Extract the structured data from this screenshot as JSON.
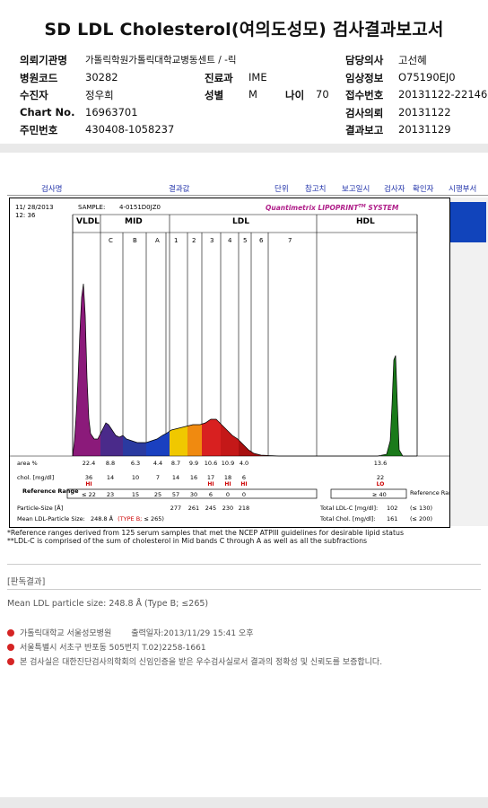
{
  "report": {
    "title": "SD LDL Cholesterol(여의도성모) 검사결과보고서"
  },
  "patient": {
    "institution_label": "의뢰기관명",
    "institution": "가톨릭학원가톨릭대학교병동센트 / -릭",
    "hospital_code_label": "병원코드",
    "hospital_code": "30282",
    "name_label": "수진자",
    "name": "정우희",
    "chart_no_label": "Chart No.",
    "chart_no": "16963701",
    "id_label": "주민번호",
    "id": "430408-1058237",
    "dept_label": "진료과",
    "dept": "IME",
    "sex_label": "성별",
    "sex": "M",
    "age_label": "나이",
    "age": "70",
    "doctor_label": "담당의사",
    "doctor": "고선혜",
    "clinical_label": "임상정보",
    "clinical": "O75190EJ0",
    "receipt_label": "접수번호",
    "receipt": "20131122-22146",
    "request_label": "검사의뢰",
    "request": "20131122",
    "report_label": "결과보고",
    "report_date": "20131129"
  },
  "table_header": {
    "col1": "검사명",
    "col2": "결과값",
    "col3": "단위",
    "col4": "참고치",
    "col5": "보고일시",
    "col6": "검사자",
    "col7": "확인자",
    "col8": "시행부서"
  },
  "chart_data": {
    "type": "area",
    "date": "11/ 28/2013",
    "time": "12: 36",
    "sample_label": "SAMPLE:",
    "sample": "4-0151D0JZ0",
    "brand": "Quantimetrix LIPOPRINT",
    "brand_tm": "TM",
    "brand_system": " SYSTEM",
    "top_groups": [
      "VLDL",
      "MID",
      "LDL",
      "HDL"
    ],
    "bands": [
      "C",
      "B",
      "A",
      "1",
      "2",
      "3",
      "4",
      "5",
      "6",
      "7"
    ],
    "rows": {
      "area_label": "area %",
      "area": [
        "22.4",
        "8.8",
        "6.3",
        "4.4",
        "8.7",
        "9.9",
        "10.6",
        "10.9",
        "4.0",
        "",
        "13.6"
      ],
      "chol_label": "chol. [mg/dl]",
      "chol": [
        "36",
        "14",
        "10",
        "7",
        "14",
        "16",
        "17",
        "18",
        "6",
        "",
        "22"
      ],
      "flags": [
        "HI",
        "",
        "",
        "",
        "",
        "",
        "HI",
        "HI",
        "HI",
        "",
        "LO"
      ],
      "ref_label": "Reference Range",
      "ref": [
        "≤ 22",
        "23",
        "15",
        "25",
        "57",
        "30",
        "6",
        "0",
        "0"
      ],
      "ref_hdl": "≥ 40",
      "ref_right": "Reference Range"
    },
    "particle_size_label": "Particle-Size [Å]",
    "particle_sizes": [
      "277",
      "261",
      "245",
      "230",
      "218"
    ],
    "mean_ldl_label": "Mean LDL-Particle Size:",
    "mean_ldl": "248.8 Å",
    "mean_ldl_type": "(TYPE B;",
    "mean_ldl_ref": "≤ 265)",
    "total_ldl_label": "Total LDL-C [mg/dl]:",
    "total_ldl": "102",
    "total_ldl_ref": "(≤ 130)",
    "total_chol_label": "Total Chol. [mg/dl]:",
    "total_chol": "161",
    "total_chol_ref": "(≤ 200)"
  },
  "notes": {
    "n1": "*Reference ranges derived from 125 serum samples that met the NCEP ATPIII guidelines for desirable lipid status",
    "n2": "**LDL-C is comprised of the sum of cholesterol in Mid bands C through A as well as all the subfractions"
  },
  "interpretation": {
    "title": "[판독결과]",
    "text": "Mean LDL particle size: 248.8 Å (Type B; ≤265)"
  },
  "footer": {
    "org": "가톨릭대학교 서울성모병원",
    "printed": "출력일자:2013/11/29 15:41 오후",
    "address": "서울특별시 서초구 반포동 505번지 T.02)2258-1661",
    "cert": "본 검사실은 대한진단검사의학회의 신임인증을 받은 우수검사실로서 결과의 정확성 및 신뢰도를 보증합니다."
  },
  "colors": {
    "vldl": "#8b1a7a",
    "mid_c": "#4a2a8a",
    "mid_b": "#2a3aa0",
    "mid_a": "#1a40c0",
    "l1": "#f0c800",
    "l2": "#f08a10",
    "l3": "#d82020",
    "l4": "#c41818",
    "l5": "#a81010",
    "hdl": "#1a7a1a",
    "flag": "#cc0000",
    "accent": "#1144bb"
  }
}
